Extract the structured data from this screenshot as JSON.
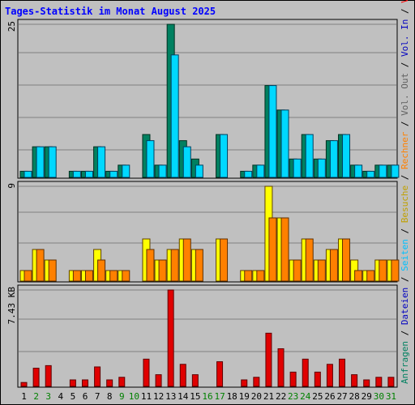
{
  "title": "Tages-Statistik im Monat August 2025",
  "colors": {
    "title": "#0000ff",
    "anfragen": "#008060",
    "dateien": "#00ccff",
    "seiten": "#00a0ff",
    "besuche": "#ffff00",
    "rechner": "#ff8000",
    "vol_out": "#8080ff",
    "vol_in": "#6060ff",
    "volumen": "#ff0000",
    "weekend_label": "#008000",
    "weekday_label": "#000000",
    "grid": "#808080",
    "plot_bg": "#c0c0c0"
  },
  "right_legends": {
    "top": [
      {
        "text": "Anfragen",
        "color": "#008060"
      },
      {
        "text": " / ",
        "color": "#000000"
      },
      {
        "text": "Dateien",
        "color": "#0000c0"
      },
      {
        "text": " / ",
        "color": "#000000"
      },
      {
        "text": "Seiten",
        "color": "#00c0ff"
      },
      {
        "text": " / ",
        "color": "#000000"
      },
      {
        "text": "Besuche",
        "color": "#c0a000"
      },
      {
        "text": " / ",
        "color": "#000000"
      },
      {
        "text": "Rechner",
        "color": "#ff8000"
      },
      {
        "text": " / ",
        "color": "#000000"
      },
      {
        "text": "Vol. Out",
        "color": "#606060"
      },
      {
        "text": " / ",
        "color": "#000000"
      },
      {
        "text": "Vol. In",
        "color": "#0000c0"
      },
      {
        "text": " / ",
        "color": "#000000"
      },
      {
        "text": "Volumen",
        "color": "#ff0000"
      }
    ]
  },
  "chart_data": [
    {
      "type": "bar",
      "panel": "hits",
      "ymax_label": "25",
      "ylim": [
        0,
        25
      ],
      "categories": [
        "1",
        "2",
        "3",
        "4",
        "5",
        "6",
        "7",
        "8",
        "9",
        "10",
        "11",
        "12",
        "13",
        "14",
        "15",
        "16",
        "17",
        "18",
        "19",
        "20",
        "21",
        "22",
        "23",
        "24",
        "25",
        "26",
        "27",
        "28",
        "29",
        "30",
        "31"
      ],
      "weekend_days": [
        2,
        3,
        9,
        10,
        16,
        17,
        23,
        24,
        30,
        31
      ],
      "series": [
        {
          "name": "Anfragen",
          "values": [
            1,
            5,
            5,
            0,
            1,
            1,
            5,
            1,
            2,
            0,
            7,
            2,
            25,
            6,
            3,
            0,
            7,
            0,
            1,
            2,
            15,
            11,
            3,
            7,
            3,
            6,
            7,
            2,
            1,
            2,
            2
          ]
        },
        {
          "name": "Dateien",
          "values": [
            1,
            5,
            5,
            0,
            1,
            1,
            5,
            1,
            2,
            0,
            6,
            2,
            20,
            5,
            2,
            0,
            7,
            0,
            1,
            2,
            15,
            11,
            3,
            7,
            3,
            6,
            7,
            2,
            1,
            2,
            2
          ]
        }
      ]
    },
    {
      "type": "bar",
      "panel": "visits",
      "ymax_label": "9",
      "ylim": [
        0,
        9
      ],
      "categories": [
        "1",
        "2",
        "3",
        "4",
        "5",
        "6",
        "7",
        "8",
        "9",
        "10",
        "11",
        "12",
        "13",
        "14",
        "15",
        "16",
        "17",
        "18",
        "19",
        "20",
        "21",
        "22",
        "23",
        "24",
        "25",
        "26",
        "27",
        "28",
        "29",
        "30",
        "31"
      ],
      "series": [
        {
          "name": "Besuche",
          "values": [
            1,
            3,
            2,
            0,
            1,
            1,
            3,
            1,
            1,
            0,
            4,
            2,
            3,
            4,
            3,
            0,
            4,
            0,
            1,
            1,
            9,
            6,
            2,
            4,
            2,
            3,
            4,
            2,
            1,
            2,
            2
          ]
        },
        {
          "name": "Rechner",
          "values": [
            1,
            3,
            2,
            0,
            1,
            1,
            2,
            1,
            1,
            0,
            3,
            2,
            3,
            4,
            3,
            0,
            4,
            0,
            1,
            1,
            6,
            6,
            2,
            4,
            2,
            3,
            4,
            1,
            1,
            2,
            2
          ]
        }
      ]
    },
    {
      "type": "bar",
      "panel": "volume",
      "ymax_label": "7.43 KB",
      "ylim": [
        0,
        7.43
      ],
      "unit": "KB",
      "categories": [
        "1",
        "2",
        "3",
        "4",
        "5",
        "6",
        "7",
        "8",
        "9",
        "10",
        "11",
        "12",
        "13",
        "14",
        "15",
        "16",
        "17",
        "18",
        "19",
        "20",
        "21",
        "22",
        "23",
        "24",
        "25",
        "26",
        "27",
        "28",
        "29",
        "30",
        "31"
      ],
      "series": [
        {
          "name": "Volumen",
          "values": [
            0.3,
            1.4,
            1.6,
            0,
            0.5,
            0.5,
            1.5,
            0.5,
            0.7,
            0,
            2.1,
            0.9,
            7.43,
            1.7,
            0.9,
            0,
            1.9,
            0,
            0.5,
            0.7,
            4.1,
            2.9,
            1.1,
            2.1,
            1.1,
            1.7,
            2.1,
            0.9,
            0.5,
            0.7,
            0.7
          ]
        }
      ]
    }
  ]
}
